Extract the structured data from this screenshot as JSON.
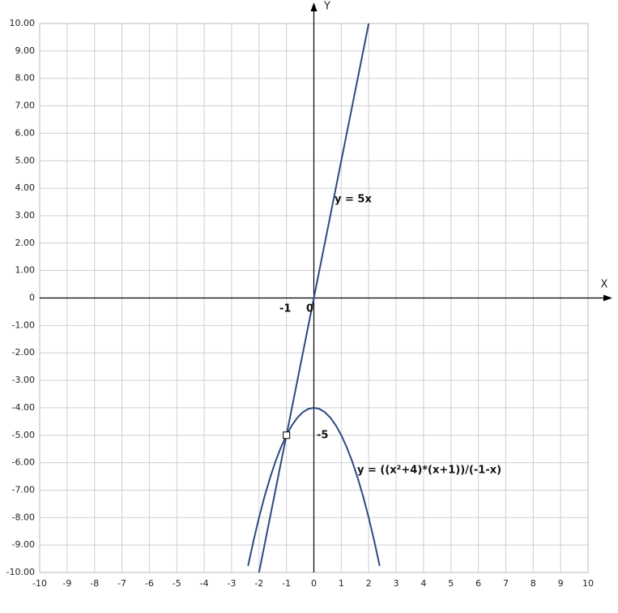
{
  "chart_data": {
    "type": "line",
    "x_label": "X",
    "y_label": "Y",
    "xlim": [
      -10,
      10
    ],
    "ylim": [
      -10,
      10
    ],
    "xticks": [
      -10,
      -9,
      -8,
      -7,
      -6,
      -5,
      -4,
      -3,
      -2,
      -1,
      0,
      1,
      2,
      3,
      4,
      5,
      6,
      7,
      8,
      9,
      10
    ],
    "yticks": [
      {
        "value": 10,
        "label": "10.00"
      },
      {
        "value": 9,
        "label": "9.00"
      },
      {
        "value": 8,
        "label": "8.00"
      },
      {
        "value": 7,
        "label": "7.00"
      },
      {
        "value": 6,
        "label": "6.00"
      },
      {
        "value": 5,
        "label": "5.00"
      },
      {
        "value": 4,
        "label": "4.00"
      },
      {
        "value": 3,
        "label": "3.00"
      },
      {
        "value": 2,
        "label": "2.00"
      },
      {
        "value": 1,
        "label": "1.00"
      },
      0,
      {
        "value": -1,
        "label": "-1.00"
      },
      {
        "value": -2,
        "label": "-2.00"
      },
      {
        "value": -3,
        "label": "-3.00"
      },
      {
        "value": -4,
        "label": "-4.00"
      },
      {
        "value": -5,
        "label": "-5.00"
      },
      {
        "value": -6,
        "label": "-6.00"
      },
      {
        "value": -7,
        "label": "-7.00"
      },
      {
        "value": -8,
        "label": "-8.00"
      },
      {
        "value": -9,
        "label": "-9.00"
      },
      {
        "value": -10,
        "label": "-10.00"
      }
    ],
    "grid": true,
    "series": [
      {
        "color": "#2f4a80",
        "x": [
          -2,
          2
        ],
        "values": [
          -10,
          10
        ]
      },
      {
        "color": "#2f4a80",
        "x": [
          -2.4,
          -2.2,
          -2,
          -1.8,
          -1.6,
          -1.4,
          -1.2,
          -1,
          -0.8,
          -0.6,
          -0.4,
          -0.2,
          0,
          0.2,
          0.4,
          0.6,
          0.8,
          1,
          1.2,
          1.4,
          1.6,
          1.8,
          2,
          2.2,
          2.4
        ],
        "values": [
          -9.76,
          -8.84,
          -8,
          -7.24,
          -6.56,
          -5.96,
          -5.44,
          -5,
          -4.64,
          -4.36,
          -4.16,
          -4.04,
          -4,
          -4.04,
          -4.16,
          -4.36,
          -4.64,
          -5,
          -5.44,
          -5.96,
          -6.56,
          -7.24,
          -8,
          -8.84,
          -9.76
        ]
      }
    ],
    "hole": {
      "x": -1,
      "y": -5
    },
    "annotations": [
      "y = 5x",
      "y = ((x²+4)*(x+1))/(-1-x)",
      "-1",
      "0",
      "-5"
    ]
  }
}
